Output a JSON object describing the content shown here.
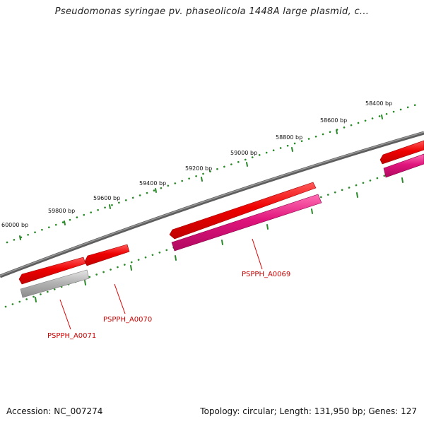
{
  "title": "Pseudomonas syringae pv. phaseolicola 1448A large plasmid, c...",
  "footer": {
    "accession": "Accession: NC_007274",
    "summary": "Topology: circular; Length: 131,950 bp; Genes: 127"
  },
  "ruler_labels": [
    "60000 bp",
    "59800 bp",
    "59600 bp",
    "59400 bp",
    "59200 bp",
    "59000 bp",
    "58800 bp",
    "58600 bp",
    "58400 bp"
  ],
  "genes": [
    {
      "name": "PSPPH_A0069",
      "strand": "reverse",
      "product_color": "#e0147c"
    },
    {
      "name": "PSPPH_A0070",
      "strand": "reverse",
      "product_color": null
    },
    {
      "name": "PSPPH_A0071",
      "strand": "reverse",
      "product_color": "#aaaaaa"
    }
  ],
  "colors": {
    "backbone": "#777777",
    "gene": "#ee0000",
    "cds_pink": "#e0147c",
    "cds_grey": "#aaaaaa",
    "ruler_tick": "#2a8a2a",
    "label_red": "#cc0000"
  }
}
